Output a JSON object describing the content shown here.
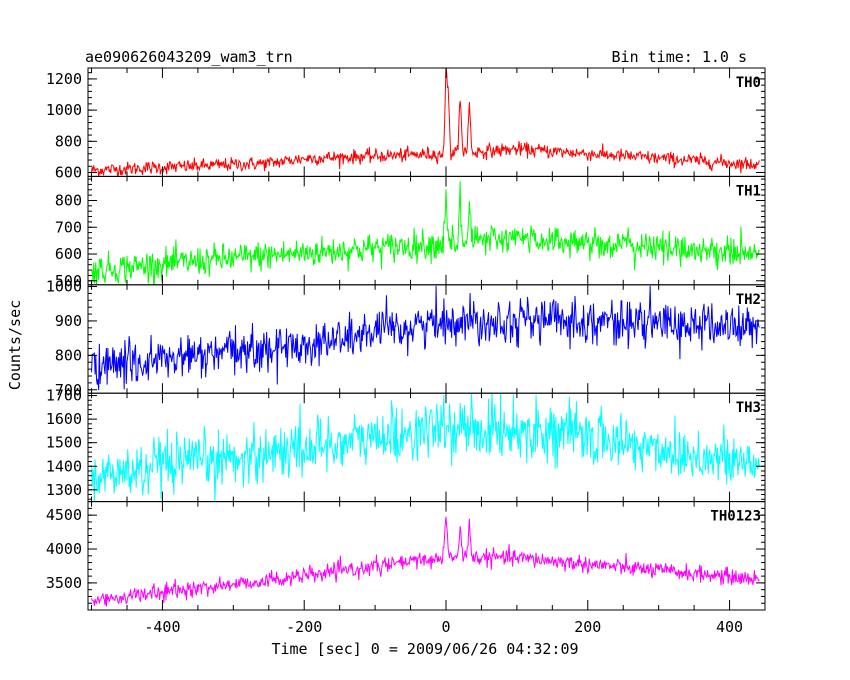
{
  "chart_data": {
    "type": "line",
    "title_left": "ae090626043209_wam3_trn",
    "title_right": "Bin time: 1.0 s",
    "xlabel": "Time [sec] 0 = 2009/06/26 04:32:09",
    "ylabel": "Counts/sec",
    "xlim": [
      -505,
      450
    ],
    "x_ticks": [
      -400,
      -200,
      0,
      200,
      400
    ],
    "bin_time": 1.0,
    "data_x_range": [
      -500,
      442
    ],
    "grid": false,
    "panels": [
      {
        "name": "TH0",
        "color": "#ff0000",
        "ylim": [
          575,
          1270
        ],
        "y_ticks": [
          600,
          800,
          1000,
          1200
        ],
        "trend": [
          [
            -500,
            615
          ],
          [
            -250,
            660
          ],
          [
            -200,
            690
          ],
          [
            0,
            720
          ],
          [
            100,
            750
          ],
          [
            442,
            650
          ]
        ],
        "noise_sigma": 22,
        "bursts": [
          {
            "x": 0,
            "peak": 1320
          },
          {
            "x": 3,
            "peak": 1150
          },
          {
            "x": 20,
            "peak": 1150
          },
          {
            "x": 33,
            "peak": 1145
          }
        ]
      },
      {
        "name": "TH1",
        "color": "#00ff00",
        "ylim": [
          485,
          890
        ],
        "y_ticks": [
          500,
          600,
          700,
          800
        ],
        "trend": [
          [
            -500,
            540
          ],
          [
            -250,
            595
          ],
          [
            0,
            640
          ],
          [
            100,
            660
          ],
          [
            442,
            600
          ]
        ],
        "noise_sigma": 28,
        "bursts": [
          {
            "x": 0,
            "peak": 890
          },
          {
            "x": 20,
            "peak": 875
          },
          {
            "x": 33,
            "peak": 830
          }
        ]
      },
      {
        "name": "TH2",
        "color": "#0000ff",
        "ylim": [
          690,
          1005
        ],
        "y_ticks": [
          700,
          800,
          900,
          1000
        ],
        "trend": [
          [
            -500,
            765
          ],
          [
            -200,
            830
          ],
          [
            0,
            900
          ],
          [
            150,
            905
          ],
          [
            442,
            880
          ]
        ],
        "noise_sigma": 32,
        "bursts": []
      },
      {
        "name": "TH3",
        "color": "#00ffff",
        "ylim": [
          1250,
          1710
        ],
        "y_ticks": [
          1300,
          1400,
          1500,
          1600,
          1700
        ],
        "trend": [
          [
            -500,
            1350
          ],
          [
            -200,
            1480
          ],
          [
            0,
            1560
          ],
          [
            150,
            1550
          ],
          [
            442,
            1400
          ]
        ],
        "noise_sigma": 60,
        "bursts": []
      },
      {
        "name": "TH0123",
        "color": "#ff00ff",
        "ylim": [
          3100,
          4700
        ],
        "y_ticks": [
          3500,
          4000,
          4500
        ],
        "trend": [
          [
            -500,
            3240
          ],
          [
            -200,
            3600
          ],
          [
            0,
            3880
          ],
          [
            100,
            3870
          ],
          [
            442,
            3550
          ]
        ],
        "noise_sigma": 60,
        "bursts": [
          {
            "x": 0,
            "peak": 4700
          },
          {
            "x": 20,
            "peak": 4450
          },
          {
            "x": 33,
            "peak": 4500
          }
        ]
      }
    ]
  }
}
